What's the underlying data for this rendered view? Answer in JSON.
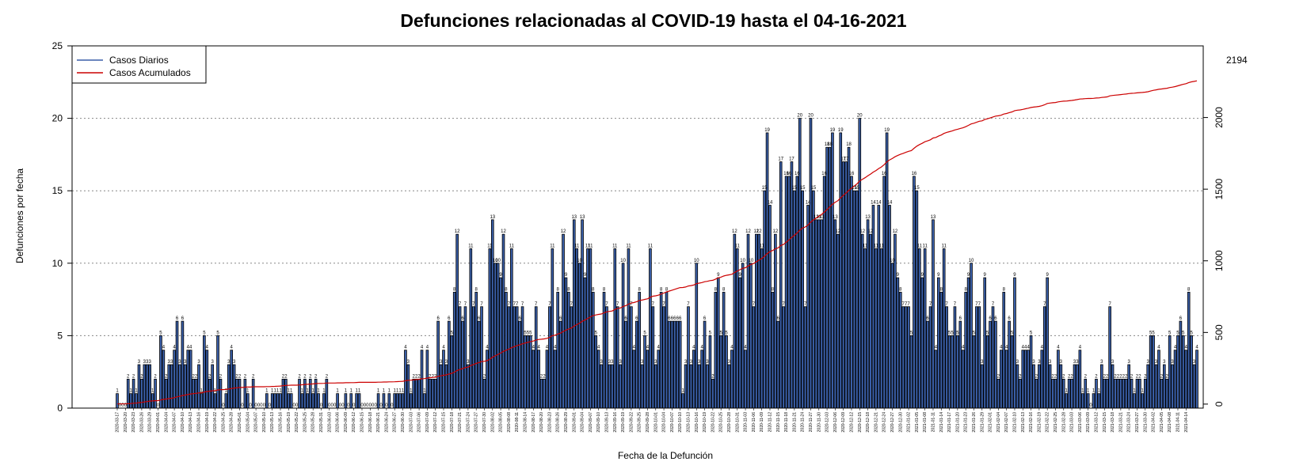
{
  "chart_data": {
    "type": "bar",
    "title": "Defunciones relacionadas al COVID-19 hasta el 04-16-2021",
    "xlabel": "Fecha de la Defunción",
    "ylabel": "Defunciones por fecha",
    "ylim": [
      0,
      25
    ],
    "y_ticks": [
      0,
      5,
      10,
      15,
      20,
      25
    ],
    "y2lim": [
      -28,
      2500
    ],
    "y2_ticks": [
      0,
      500,
      1000,
      1500,
      2000
    ],
    "grid": "horizontal dotted at left-axis ticks",
    "legend_position": "top-left",
    "legend": [
      "Casos Diarios",
      "Casos Acumulados"
    ],
    "colors": {
      "bars": "#3a5fa8",
      "bar_edge": "#000000",
      "line": "#cc0000"
    },
    "start_date": "2020-03-17",
    "end_date": "2021-04-16",
    "series": [
      {
        "name": "Casos Diarios",
        "type": "bar",
        "axis": "left",
        "values": [
          1,
          0,
          0,
          0,
          2,
          1,
          2,
          1,
          3,
          2,
          3,
          3,
          3,
          1,
          2,
          0,
          5,
          4,
          2,
          3,
          3,
          4,
          6,
          3,
          6,
          3,
          4,
          4,
          2,
          2,
          3,
          1,
          5,
          4,
          2,
          3,
          1,
          5,
          2,
          0,
          1,
          3,
          4,
          3,
          2,
          2,
          0,
          2,
          1,
          0,
          2,
          0,
          0,
          0,
          0,
          1,
          0,
          1,
          1,
          1,
          1,
          2,
          2,
          1,
          1,
          0,
          0,
          2,
          1,
          2,
          1,
          2,
          1,
          2,
          1,
          0,
          1,
          2,
          0,
          0,
          0,
          1,
          0,
          0,
          1,
          0,
          1,
          0,
          1,
          1,
          0,
          0,
          0,
          0,
          0,
          0,
          1,
          0,
          1,
          0,
          1,
          0,
          1,
          1,
          1,
          1,
          4,
          3,
          1,
          2,
          2,
          2,
          4,
          1,
          4,
          2,
          2,
          2,
          6,
          3,
          4,
          3,
          6,
          5,
          8,
          12,
          7,
          6,
          7,
          3,
          11,
          7,
          8,
          6,
          7,
          2,
          4,
          11,
          13,
          10,
          10,
          9,
          12,
          8,
          7,
          11,
          7,
          7,
          6,
          7,
          5,
          5,
          5,
          4,
          7,
          4,
          2,
          2,
          4,
          7,
          11,
          4,
          8,
          6,
          12,
          9,
          8,
          7,
          13,
          11,
          10,
          13,
          9,
          11,
          11,
          8,
          5,
          4,
          3,
          8,
          7,
          3,
          3,
          11,
          7,
          3,
          10,
          6,
          11,
          7,
          4,
          6,
          8,
          3,
          5,
          4,
          11,
          7,
          3,
          4,
          8,
          7,
          8,
          6,
          6,
          6,
          6,
          6,
          1,
          3,
          7,
          3,
          4,
          10,
          3,
          4,
          6,
          3,
          5,
          2,
          8,
          9,
          5,
          8,
          5,
          3,
          4,
          12,
          11,
          9,
          10,
          4,
          12,
          10,
          7,
          12,
          12,
          11,
          15,
          19,
          14,
          8,
          12,
          6,
          17,
          7,
          16,
          16,
          17,
          15,
          16,
          20,
          15,
          7,
          14,
          20,
          15,
          13,
          13,
          13,
          16,
          18,
          18,
          19,
          13,
          12,
          19,
          17,
          17,
          18,
          16,
          15,
          15,
          20,
          12,
          11,
          13,
          12,
          14,
          11,
          14,
          11,
          16,
          19,
          14,
          10,
          12,
          9,
          8,
          7,
          7,
          7,
          5,
          16,
          15,
          11,
          9,
          11,
          6,
          7,
          13,
          4,
          9,
          8,
          11,
          7,
          5,
          5,
          7,
          5,
          6,
          4,
          8,
          9,
          10,
          5,
          7,
          7,
          3,
          9,
          5,
          6,
          7,
          6,
          2,
          4,
          8,
          4,
          6,
          5,
          9,
          3,
          2,
          4,
          4,
          4,
          5,
          3,
          2,
          3,
          4,
          7,
          9,
          3,
          2,
          2,
          4,
          3,
          2,
          1,
          2,
          2,
          3,
          3,
          4,
          1,
          2,
          1,
          0,
          1,
          2,
          1,
          3,
          2,
          2,
          7,
          3,
          2,
          2,
          2,
          2,
          2,
          3,
          2,
          1,
          2,
          2,
          1,
          2,
          3,
          5,
          5,
          3,
          4,
          2,
          3,
          2,
          5,
          3,
          4,
          5,
          6,
          5,
          4,
          8,
          5,
          3,
          4
        ]
      },
      {
        "name": "Casos Acumulados",
        "type": "line",
        "axis": "right",
        "final_value": 2194
      }
    ],
    "data_labels": [
      {
        "text": "2194"
      }
    ],
    "x_tick_labels": [
      "2020-03-17",
      "2020-03-20",
      "2020-03-23",
      "2020-03-26",
      "2020-03-29",
      "2020-04-01",
      "2020-04-04",
      "2020-04-07",
      "2020-04-10",
      "2020-04-13",
      "2020-04-16",
      "2020-04-19",
      "2020-04-22",
      "2020-04-25",
      "2020-04-28",
      "2020-05-01",
      "2020-05-04",
      "2020-05-07",
      "2020-05-10",
      "2020-05-13",
      "2020-05-16",
      "2020-05-19",
      "2020-05-22",
      "2020-05-25",
      "2020-05-28",
      "2020-05-31",
      "2020-06-03",
      "2020-06-06",
      "2020-06-09",
      "2020-06-12",
      "2020-06-15",
      "2020-06-18",
      "2020-06-21",
      "2020-06-24",
      "2020-06-27",
      "2020-06-30",
      "2020-07-03",
      "2020-07-06",
      "2020-07-09",
      "2020-07-12",
      "2020-07-15",
      "2020-07-18",
      "2020-07-21",
      "2020-07-24",
      "2020-07-27",
      "2020-07-30",
      "2020-08-02",
      "2020-08-05",
      "2020-08-08",
      "2020-08-11",
      "2020-08-14",
      "2020-08-17",
      "2020-08-20",
      "2020-08-23",
      "2020-08-26",
      "2020-08-29",
      "2020-09-01",
      "2020-09-04",
      "2020-09-07",
      "2020-09-10",
      "2020-09-13",
      "2020-09-16",
      "2020-09-19",
      "2020-09-22",
      "2020-09-25",
      "2020-09-28",
      "2020-10-01",
      "2020-10-04",
      "2020-10-07",
      "2020-10-10",
      "2020-10-13",
      "2020-10-16",
      "2020-10-19",
      "2020-10-22",
      "2020-10-25",
      "2020-10-28",
      "2020-10-31",
      "2020-11-03",
      "2020-11-06",
      "2020-11-09",
      "2020-11-12",
      "2020-11-15",
      "2020-11-18",
      "2020-11-21",
      "2020-11-24",
      "2020-11-27",
      "2020-11-30",
      "2020-12-03",
      "2020-12-06",
      "2020-12-09",
      "2020-12-12",
      "2020-12-15",
      "2020-12-18",
      "2020-12-21",
      "2020-12-24",
      "2020-12-27",
      "2020-12-30",
      "2021-01-02",
      "2021-01-05",
      "2021-01-08",
      "2021-01-11",
      "2021-01-14",
      "2021-01-17",
      "2021-01-20",
      "2021-01-23",
      "2021-01-26",
      "2021-01-29",
      "2021-02-01",
      "2021-02-04",
      "2021-02-07",
      "2021-02-10",
      "2021-02-13",
      "2021-02-16",
      "2021-02-19",
      "2021-02-22",
      "2021-02-25",
      "2021-02-28",
      "2021-03-03",
      "2021-03-06",
      "2021-03-09",
      "2021-03-12",
      "2021-03-15",
      "2021-03-18",
      "2021-03-21",
      "2021-03-24",
      "2021-03-27",
      "2021-03-30",
      "2021-04-02",
      "2021-04-05",
      "2021-04-08",
      "2021-04-11",
      "2021-04-14"
    ]
  }
}
